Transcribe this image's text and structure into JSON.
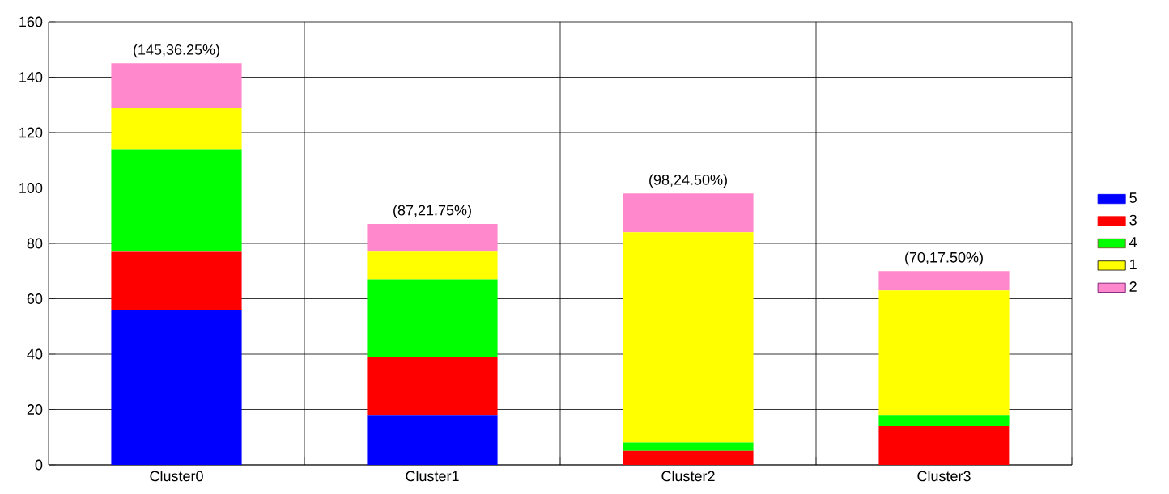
{
  "chart_data": {
    "type": "bar",
    "stacked": true,
    "categories": [
      "Cluster0",
      "Cluster1",
      "Cluster2",
      "Cluster3"
    ],
    "series": [
      {
        "name": "5",
        "color": "#0000ff",
        "values": [
          56,
          18,
          0,
          0
        ]
      },
      {
        "name": "3",
        "color": "#ff0000",
        "values": [
          21,
          21,
          5,
          14
        ]
      },
      {
        "name": "4",
        "color": "#00ff00",
        "values": [
          37,
          28,
          3,
          4
        ]
      },
      {
        "name": "1",
        "color": "#ffff00",
        "values": [
          15,
          10,
          76,
          45
        ]
      },
      {
        "name": "2",
        "color": "#ff88cc",
        "values": [
          16,
          10,
          14,
          7
        ]
      }
    ],
    "totals": [
      "(145,36.25%)",
      "(87,21.75%)",
      "(98,24.50%)",
      "(70,17.50%)"
    ],
    "ylim": [
      0,
      160
    ],
    "yticks": [
      0,
      20,
      40,
      60,
      80,
      100,
      120,
      140,
      160
    ],
    "grid": true,
    "legend": "right"
  }
}
